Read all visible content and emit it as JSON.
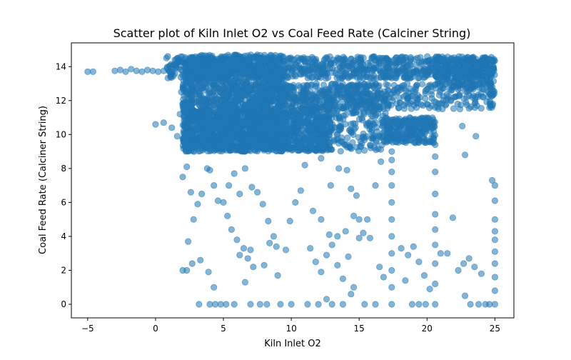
{
  "chart_data": {
    "type": "scatter",
    "title": "Scatter plot of Kiln Inlet O2 vs Coal Feed Rate (Calciner String)",
    "xlabel": "Kiln Inlet O2",
    "ylabel": "Coal Feed Rate (Calciner String)",
    "xlim": [
      -6.2,
      26.4
    ],
    "ylim": [
      -0.8,
      15.4
    ],
    "xticks": [
      -5,
      0,
      5,
      10,
      15,
      20,
      25
    ],
    "yticks": [
      0,
      2,
      4,
      6,
      8,
      10,
      12,
      14
    ],
    "grid": false,
    "legend": "none",
    "point_color": "#1f77b4",
    "point_alpha": 0.55,
    "series": [
      {
        "points": [
          [
            -5.0,
            13.7
          ],
          [
            -4.6,
            13.7
          ],
          [
            -3.0,
            13.75
          ],
          [
            -2.6,
            13.8
          ],
          [
            -2.2,
            13.7
          ],
          [
            -1.8,
            13.85
          ],
          [
            -1.4,
            13.75
          ],
          [
            -1.0,
            13.7
          ],
          [
            -0.6,
            13.8
          ],
          [
            -0.2,
            13.75
          ],
          [
            0.2,
            13.7
          ],
          [
            0.6,
            13.75
          ],
          [
            0.8,
            14.5
          ],
          [
            0.9,
            14.6
          ],
          [
            0.0,
            10.6
          ],
          [
            0.6,
            10.7
          ],
          [
            1.2,
            10.4
          ],
          [
            1.6,
            9.9
          ],
          [
            1.9,
            12.5
          ],
          [
            2.0,
            11.8
          ],
          [
            1.8,
            11.2
          ],
          [
            2.2,
            10.0
          ],
          [
            2.4,
            9.5
          ],
          [
            2.6,
            9.2
          ],
          [
            3.0,
            9.4
          ],
          [
            3.5,
            9.3
          ],
          [
            2.0,
            7.5
          ],
          [
            2.3,
            8.1
          ],
          [
            2.6,
            6.6
          ],
          [
            2.4,
            3.7
          ],
          [
            2.8,
            5.0
          ],
          [
            3.1,
            5.9
          ],
          [
            3.4,
            6.5
          ],
          [
            3.8,
            8.0
          ],
          [
            4.0,
            7.9
          ],
          [
            4.3,
            7.0
          ],
          [
            4.6,
            6.1
          ],
          [
            2.0,
            2.0
          ],
          [
            2.3,
            2.0
          ],
          [
            2.7,
            2.4
          ],
          [
            3.3,
            2.6
          ],
          [
            3.9,
            1.9
          ],
          [
            4.3,
            1.0
          ],
          [
            3.2,
            0.0
          ],
          [
            4.0,
            0.0
          ],
          [
            4.4,
            0.0
          ],
          [
            4.8,
            0.0
          ],
          [
            5.0,
            6.0
          ],
          [
            5.3,
            5.2
          ],
          [
            5.6,
            4.4
          ],
          [
            6.0,
            3.8
          ],
          [
            6.2,
            2.9
          ],
          [
            6.5,
            3.3
          ],
          [
            6.8,
            2.7
          ],
          [
            7.0,
            3.2
          ],
          [
            7.2,
            2.2
          ],
          [
            6.6,
            1.3
          ],
          [
            5.4,
            7.0
          ],
          [
            5.8,
            7.7
          ],
          [
            6.2,
            6.5
          ],
          [
            6.6,
            8.0
          ],
          [
            7.1,
            6.9
          ],
          [
            7.5,
            6.6
          ],
          [
            7.9,
            5.9
          ],
          [
            8.3,
            4.9
          ],
          [
            8.7,
            4.0
          ],
          [
            8.9,
            3.4
          ],
          [
            5.2,
            0.0
          ],
          [
            5.8,
            0.0
          ],
          [
            7.0,
            0.0
          ],
          [
            7.7,
            0.0
          ],
          [
            8.2,
            0.0
          ],
          [
            9.2,
            0.0
          ],
          [
            10.0,
            0.0
          ],
          [
            8.0,
            2.3
          ],
          [
            8.4,
            3.6
          ],
          [
            9.0,
            1.7
          ],
          [
            9.6,
            3.2
          ],
          [
            9.9,
            4.9
          ],
          [
            10.3,
            6.0
          ],
          [
            10.7,
            6.7
          ],
          [
            11.0,
            8.2
          ],
          [
            11.4,
            3.3
          ],
          [
            11.8,
            2.5
          ],
          [
            12.2,
            1.9
          ],
          [
            12.6,
            2.9
          ],
          [
            13.0,
            3.5
          ],
          [
            13.4,
            2.3
          ],
          [
            13.8,
            1.5
          ],
          [
            14.2,
            2.8
          ],
          [
            14.6,
            1.0
          ],
          [
            15.0,
            3.9
          ],
          [
            11.2,
            0.0
          ],
          [
            12.0,
            0.0
          ],
          [
            12.6,
            0.3
          ],
          [
            13.0,
            0.0
          ],
          [
            13.8,
            0.0
          ],
          [
            14.4,
            0.6
          ],
          [
            15.4,
            0.0
          ],
          [
            16.2,
            0.0
          ],
          [
            11.6,
            5.5
          ],
          [
            12.2,
            5.0
          ],
          [
            12.8,
            4.1
          ],
          [
            13.4,
            4.0
          ],
          [
            14.0,
            4.3
          ],
          [
            14.6,
            5.2
          ],
          [
            15.0,
            5.0
          ],
          [
            15.6,
            5.0
          ],
          [
            16.2,
            7.0
          ],
          [
            16.6,
            8.4
          ],
          [
            12.2,
            8.6
          ],
          [
            12.9,
            7.0
          ],
          [
            13.5,
            8.0
          ],
          [
            14.1,
            7.9
          ],
          [
            14.4,
            6.8
          ],
          [
            14.8,
            6.4
          ],
          [
            15.3,
            4.2
          ],
          [
            15.8,
            3.9
          ],
          [
            16.5,
            2.2
          ],
          [
            16.8,
            1.6
          ],
          [
            17.4,
            0.0
          ],
          [
            17.4,
            1.0
          ],
          [
            17.4,
            2.0
          ],
          [
            17.4,
            3.0
          ],
          [
            17.4,
            4.0
          ],
          [
            17.4,
            5.0
          ],
          [
            17.4,
            6.0
          ],
          [
            17.4,
            7.0
          ],
          [
            17.4,
            7.8
          ],
          [
            17.4,
            8.5
          ],
          [
            17.4,
            9.0
          ],
          [
            18.1,
            3.3
          ],
          [
            18.6,
            2.9
          ],
          [
            19.0,
            3.4
          ],
          [
            19.4,
            2.5
          ],
          [
            19.8,
            1.7
          ],
          [
            20.2,
            0.9
          ],
          [
            18.4,
            1.4
          ],
          [
            18.9,
            0.0
          ],
          [
            19.4,
            0.0
          ],
          [
            19.9,
            0.0
          ],
          [
            20.6,
            0.0
          ],
          [
            20.6,
            1.2
          ],
          [
            20.6,
            2.4
          ],
          [
            20.6,
            3.5
          ],
          [
            20.6,
            4.4
          ],
          [
            20.6,
            5.3
          ],
          [
            20.6,
            6.5
          ],
          [
            20.6,
            7.8
          ],
          [
            20.6,
            8.7
          ],
          [
            20.6,
            9.4
          ],
          [
            21.0,
            3.0
          ],
          [
            21.5,
            3.0
          ],
          [
            21.9,
            5.1
          ],
          [
            22.3,
            2.0
          ],
          [
            22.7,
            2.4
          ],
          [
            23.1,
            2.7
          ],
          [
            23.5,
            2.2
          ],
          [
            24.0,
            1.8
          ],
          [
            22.6,
            10.5
          ],
          [
            22.8,
            8.8
          ],
          [
            23.6,
            9.9
          ],
          [
            22.8,
            0.5
          ],
          [
            23.2,
            0.0
          ],
          [
            23.8,
            0.0
          ],
          [
            24.3,
            0.0
          ],
          [
            24.6,
            0.0
          ],
          [
            25.0,
            0.0
          ],
          [
            25.0,
            0.8
          ],
          [
            25.0,
            1.6
          ],
          [
            25.0,
            2.4
          ],
          [
            25.0,
            3.1
          ],
          [
            25.0,
            3.8
          ],
          [
            25.0,
            4.3
          ],
          [
            25.0,
            5.0
          ],
          [
            25.0,
            6.1
          ],
          [
            25.0,
            7.0
          ],
          [
            24.8,
            7.3
          ]
        ],
        "bands": [
          {
            "x": [
              0.8,
              25.0
            ],
            "y": [
              13.3,
              14.6
            ],
            "n": 900
          },
          {
            "x": [
              2.0,
              9.5
            ],
            "y": [
              9.0,
              14.7
            ],
            "n": 1400
          },
          {
            "x": [
              2.0,
              13.0
            ],
            "y": [
              9.0,
              11.5
            ],
            "n": 900
          },
          {
            "x": [
              5.0,
              17.0
            ],
            "y": [
              9.0,
              13.0
            ],
            "n": 700
          },
          {
            "x": [
              9.0,
              25.0
            ],
            "y": [
              11.5,
              13.0
            ],
            "n": 450
          },
          {
            "x": [
              17.0,
              20.6
            ],
            "y": [
              9.5,
              11.0
            ],
            "n": 250
          },
          {
            "x": [
              20.6,
              25.0
            ],
            "y": [
              12.8,
              14.6
            ],
            "n": 250
          }
        ]
      }
    ]
  }
}
